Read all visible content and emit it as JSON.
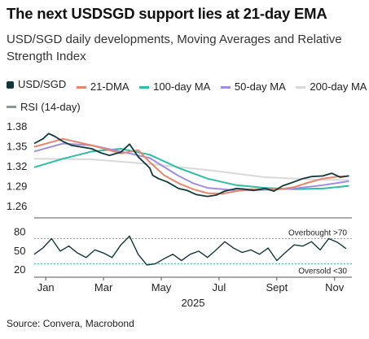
{
  "header": {
    "title": "The next USDSGD support lies at 21-day EMA",
    "subtitle": "USD/SGD daily developments, Moving Averages and Relative Strength Index"
  },
  "footer": {
    "source": "Source: Convera, Macrobond"
  },
  "colors": {
    "usdsgd": "#13383c",
    "dma21": "#e8866a",
    "ma100": "#2bbfa6",
    "ma50": "#a08fe0",
    "ma200": "#d9d9d9",
    "rsi": "#13383c",
    "overbought": "#e8866a",
    "oversold": "#2bbfa6"
  },
  "chart_data": {
    "type": "line",
    "x_axis": {
      "ticks": [
        "Jan",
        "Mar",
        "May",
        "Jul",
        "Sept",
        "Nov"
      ],
      "year_label": "2025"
    },
    "price_panel": {
      "ylim": [
        1.25,
        1.39
      ],
      "yticks": [
        "1.38",
        "1.35",
        "1.32",
        "1.29",
        "1.26"
      ],
      "series": [
        {
          "name": "USD/SGD",
          "key": "usdsgd",
          "x": [
            0,
            0.3,
            0.5,
            0.7,
            1.0,
            1.3,
            1.6,
            2.0,
            2.3,
            2.6,
            3.0,
            3.3,
            3.6,
            4.0,
            4.1,
            4.3,
            4.6,
            5.0,
            5.3,
            5.6,
            6.0,
            6.3,
            6.6,
            7.0,
            7.3,
            7.6,
            8.0,
            8.3,
            8.6,
            9.0,
            9.3,
            9.6,
            10.0,
            10.3,
            10.6,
            10.9
          ],
          "y": [
            1.355,
            1.362,
            1.37,
            1.366,
            1.358,
            1.352,
            1.35,
            1.347,
            1.341,
            1.337,
            1.342,
            1.354,
            1.335,
            1.318,
            1.307,
            1.302,
            1.297,
            1.287,
            1.284,
            1.278,
            1.275,
            1.277,
            1.283,
            1.287,
            1.286,
            1.284,
            1.287,
            1.283,
            1.291,
            1.297,
            1.302,
            1.305,
            1.306,
            1.31,
            1.304,
            1.306
          ]
        },
        {
          "name": "21-DMA",
          "key": "dma21",
          "x": [
            0,
            1,
            2,
            3,
            3.6,
            4,
            4.5,
            5,
            5.5,
            6,
            6.5,
            7,
            7.5,
            8,
            8.5,
            9,
            9.5,
            10,
            10.5,
            10.9
          ],
          "y": [
            1.35,
            1.362,
            1.352,
            1.34,
            1.345,
            1.327,
            1.307,
            1.295,
            1.286,
            1.28,
            1.279,
            1.283,
            1.286,
            1.286,
            1.286,
            1.289,
            1.296,
            1.302,
            1.305,
            1.306
          ]
        },
        {
          "name": "100-day MA",
          "key": "ma100",
          "x": [
            0,
            1,
            2,
            3,
            4,
            5,
            6,
            7,
            8,
            9,
            10,
            10.9
          ],
          "y": [
            1.319,
            1.332,
            1.343,
            1.347,
            1.338,
            1.318,
            1.302,
            1.292,
            1.288,
            1.286,
            1.287,
            1.291
          ]
        },
        {
          "name": "50-day MA",
          "key": "ma50",
          "x": [
            0,
            1,
            2,
            3,
            4,
            5,
            5.5,
            6,
            7,
            8,
            9,
            10,
            10.9
          ],
          "y": [
            1.343,
            1.355,
            1.352,
            1.343,
            1.333,
            1.306,
            1.295,
            1.288,
            1.284,
            1.285,
            1.287,
            1.292,
            1.298
          ]
        },
        {
          "name": "200-day MA",
          "key": "ma200",
          "x": [
            0,
            2,
            4,
            6,
            8,
            10,
            10.9
          ],
          "y": [
            1.332,
            1.331,
            1.324,
            1.315,
            1.304,
            1.3,
            1.3
          ]
        }
      ]
    },
    "rsi_panel": {
      "ylim": [
        15,
        90
      ],
      "yticks": [
        "80",
        "50",
        "20"
      ],
      "overbought": {
        "value": 70,
        "label": "Overbought >70"
      },
      "oversold": {
        "value": 30,
        "label": "Oversold <30"
      },
      "series": [
        {
          "name": "RSI (14-day)",
          "key": "rsi",
          "x": [
            0,
            0.3,
            0.6,
            0.9,
            1.2,
            1.5,
            1.8,
            2.1,
            2.4,
            2.7,
            3.0,
            3.3,
            3.6,
            3.9,
            4.2,
            4.5,
            4.8,
            5.1,
            5.4,
            5.7,
            6.0,
            6.3,
            6.6,
            6.9,
            7.2,
            7.5,
            7.8,
            8.1,
            8.4,
            8.7,
            9.0,
            9.3,
            9.6,
            9.9,
            10.2,
            10.5,
            10.8
          ],
          "y": [
            45,
            55,
            70,
            50,
            58,
            47,
            40,
            52,
            47,
            40,
            60,
            74,
            45,
            28,
            30,
            38,
            45,
            35,
            45,
            50,
            40,
            52,
            65,
            55,
            48,
            52,
            45,
            55,
            35,
            48,
            60,
            58,
            65,
            52,
            70,
            64,
            54
          ]
        }
      ]
    }
  }
}
